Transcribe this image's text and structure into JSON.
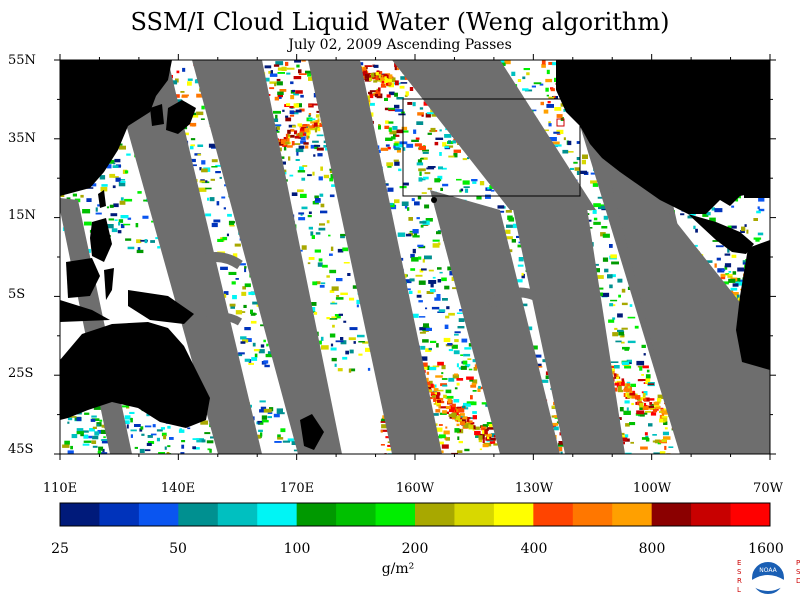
{
  "title": "SSM/I Cloud Liquid Water (Weng algorithm)",
  "subtitle": "July 02, 2009  Ascending Passes",
  "lat_labels": [
    "55N",
    "35N",
    "15N",
    "5S",
    "25S",
    "45S"
  ],
  "lon_labels": [
    "110E",
    "140E",
    "170E",
    "160W",
    "130W",
    "100W",
    "70W"
  ],
  "colorbar": {
    "labels": [
      "25",
      "50",
      "100",
      "200",
      "400",
      "800",
      "1600"
    ],
    "units": "g/m²",
    "colors": [
      "#001a7a",
      "#0033bb",
      "#0a55f0",
      "#009090",
      "#00c0c0",
      "#00f5f5",
      "#009900",
      "#00c000",
      "#00ee00",
      "#a8a800",
      "#d8d800",
      "#ffff00",
      "#ff4400",
      "#ff7700",
      "#ffa000",
      "#8b0000",
      "#c80000",
      "#ff0000"
    ]
  },
  "map_colors": {
    "ocean": "#ffffff",
    "land": "#000000",
    "no_data": "#6e6e6e"
  },
  "logo": {
    "text_left": "ESRL",
    "text_right": "PSD",
    "center": "NOAA"
  }
}
